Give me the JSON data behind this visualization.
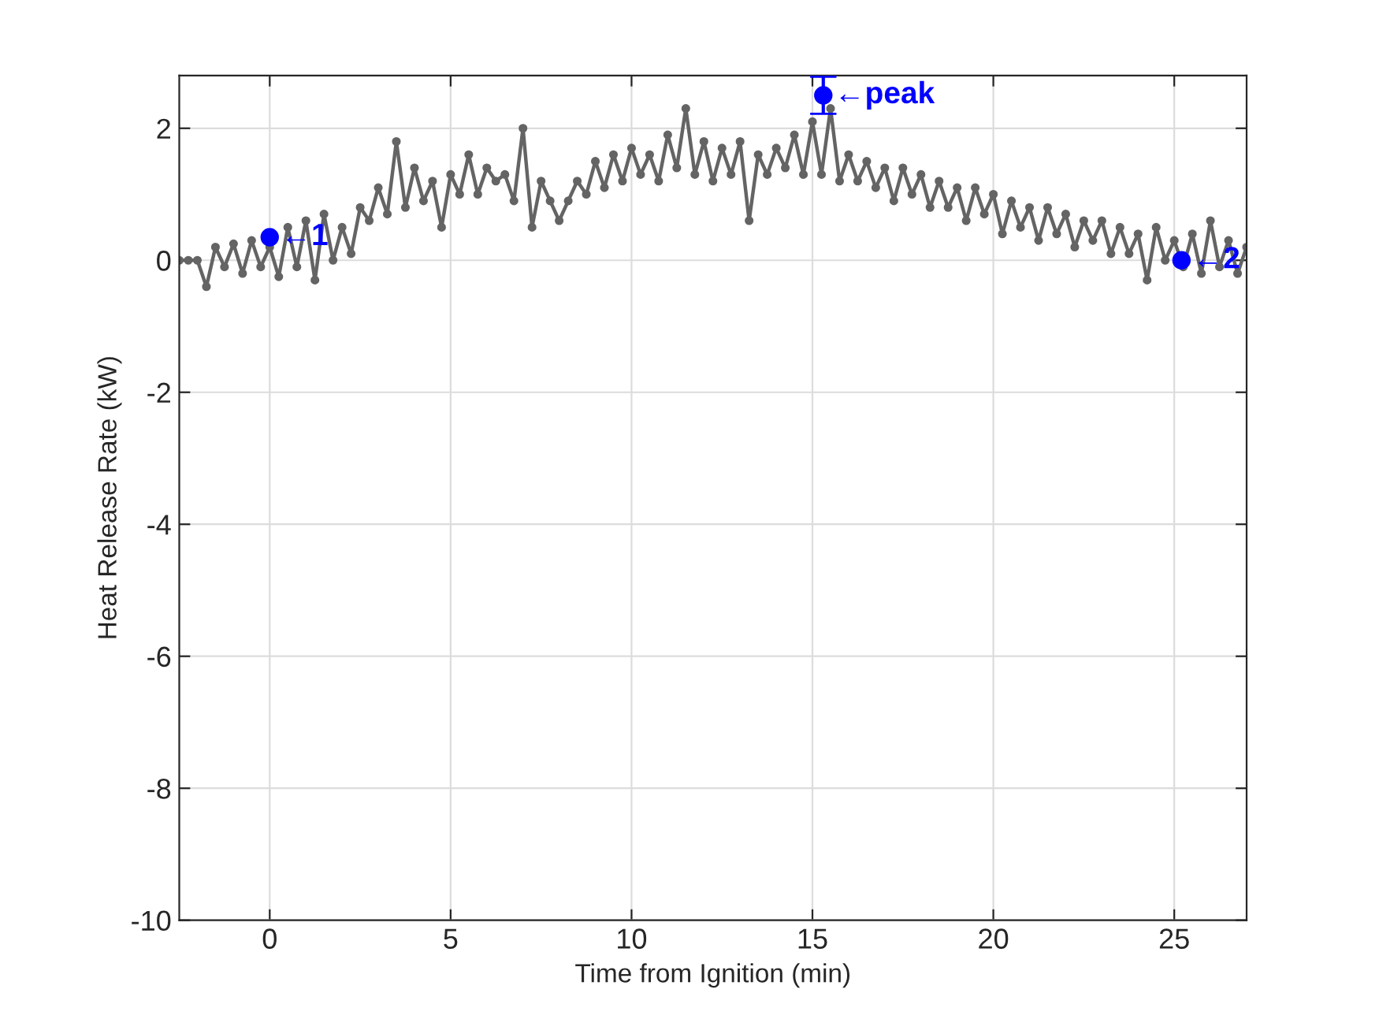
{
  "chart_data": {
    "type": "line",
    "xlabel": "Time from Ignition (min)",
    "ylabel": "Heat Release Rate (kW)",
    "xlim": [
      -2.5,
      27
    ],
    "ylim": [
      -10,
      2.8
    ],
    "xticks": [
      0,
      5,
      10,
      15,
      20,
      25
    ],
    "yticks": [
      -10,
      -8,
      -6,
      -4,
      -2,
      0,
      2
    ],
    "grid": true,
    "series": [
      {
        "color": "#646464",
        "marker": "circle",
        "line_style": "solid",
        "x": [
          -2.5,
          -2.25,
          -2.0,
          -1.75,
          -1.5,
          -1.25,
          -1.0,
          -0.75,
          -0.5,
          -0.25,
          0,
          0.25,
          0.5,
          0.75,
          1.0,
          1.25,
          1.5,
          1.75,
          2.0,
          2.25,
          2.5,
          2.75,
          3.0,
          3.25,
          3.5,
          3.75,
          4.0,
          4.25,
          4.5,
          4.75,
          5.0,
          5.25,
          5.5,
          5.75,
          6.0,
          6.25,
          6.5,
          6.75,
          7.0,
          7.25,
          7.5,
          7.75,
          8.0,
          8.25,
          8.5,
          8.75,
          9.0,
          9.25,
          9.5,
          9.75,
          10.0,
          10.25,
          10.5,
          10.75,
          11.0,
          11.25,
          11.5,
          11.75,
          12.0,
          12.25,
          12.5,
          12.75,
          13.0,
          13.25,
          13.5,
          13.75,
          14.0,
          14.25,
          14.5,
          14.75,
          15.0,
          15.25,
          15.5,
          15.75,
          16.0,
          16.25,
          16.5,
          16.75,
          17.0,
          17.25,
          17.5,
          17.75,
          18.0,
          18.25,
          18.5,
          18.75,
          19.0,
          19.25,
          19.5,
          19.75,
          20.0,
          20.25,
          20.5,
          20.75,
          21.0,
          21.25,
          21.5,
          21.75,
          22.0,
          22.25,
          22.5,
          22.75,
          23.0,
          23.25,
          23.5,
          23.75,
          24.0,
          24.25,
          24.5,
          24.75,
          25.0,
          25.25,
          25.5,
          25.75,
          26.0,
          26.25,
          26.5,
          26.75,
          27.0
        ],
        "values": [
          0,
          0,
          0,
          -0.4,
          0.2,
          -0.1,
          0.25,
          -0.2,
          0.3,
          -0.1,
          0.2,
          -0.25,
          0.5,
          -0.1,
          0.6,
          -0.3,
          0.7,
          0.0,
          0.5,
          0.1,
          0.8,
          0.6,
          1.1,
          0.7,
          1.8,
          0.8,
          1.4,
          0.9,
          1.2,
          0.5,
          1.3,
          1.0,
          1.6,
          1.0,
          1.4,
          1.2,
          1.3,
          0.9,
          2.0,
          0.5,
          1.2,
          0.9,
          0.6,
          0.9,
          1.2,
          1.0,
          1.5,
          1.1,
          1.6,
          1.2,
          1.7,
          1.3,
          1.6,
          1.2,
          1.9,
          1.4,
          2.3,
          1.3,
          1.8,
          1.2,
          1.7,
          1.3,
          1.8,
          0.6,
          1.6,
          1.3,
          1.7,
          1.4,
          1.9,
          1.3,
          2.1,
          1.3,
          2.3,
          1.2,
          1.6,
          1.2,
          1.5,
          1.1,
          1.4,
          0.9,
          1.4,
          1.0,
          1.3,
          0.8,
          1.2,
          0.8,
          1.1,
          0.6,
          1.1,
          0.7,
          1.0,
          0.4,
          0.9,
          0.5,
          0.8,
          0.3,
          0.8,
          0.4,
          0.7,
          0.2,
          0.6,
          0.3,
          0.6,
          0.1,
          0.5,
          0.1,
          0.4,
          -0.3,
          0.5,
          0.0,
          0.3,
          -0.1,
          0.4,
          -0.2,
          0.6,
          -0.1,
          0.3,
          -0.2,
          0.2
        ]
      },
      {
        "type": "scatter",
        "color": "#0000ff",
        "marker": "circle",
        "x": [
          0,
          15.3,
          25.2
        ],
        "values": [
          0.35,
          2.5,
          0.0
        ],
        "errors": [
          null,
          0.28,
          null
        ]
      }
    ],
    "annotations": [
      {
        "text": "←1",
        "x": 0,
        "y": 0.35
      },
      {
        "text": "←peak",
        "x": 15.3,
        "y": 2.5
      },
      {
        "text": "←2",
        "x": 25.2,
        "y": 0.0
      }
    ]
  }
}
